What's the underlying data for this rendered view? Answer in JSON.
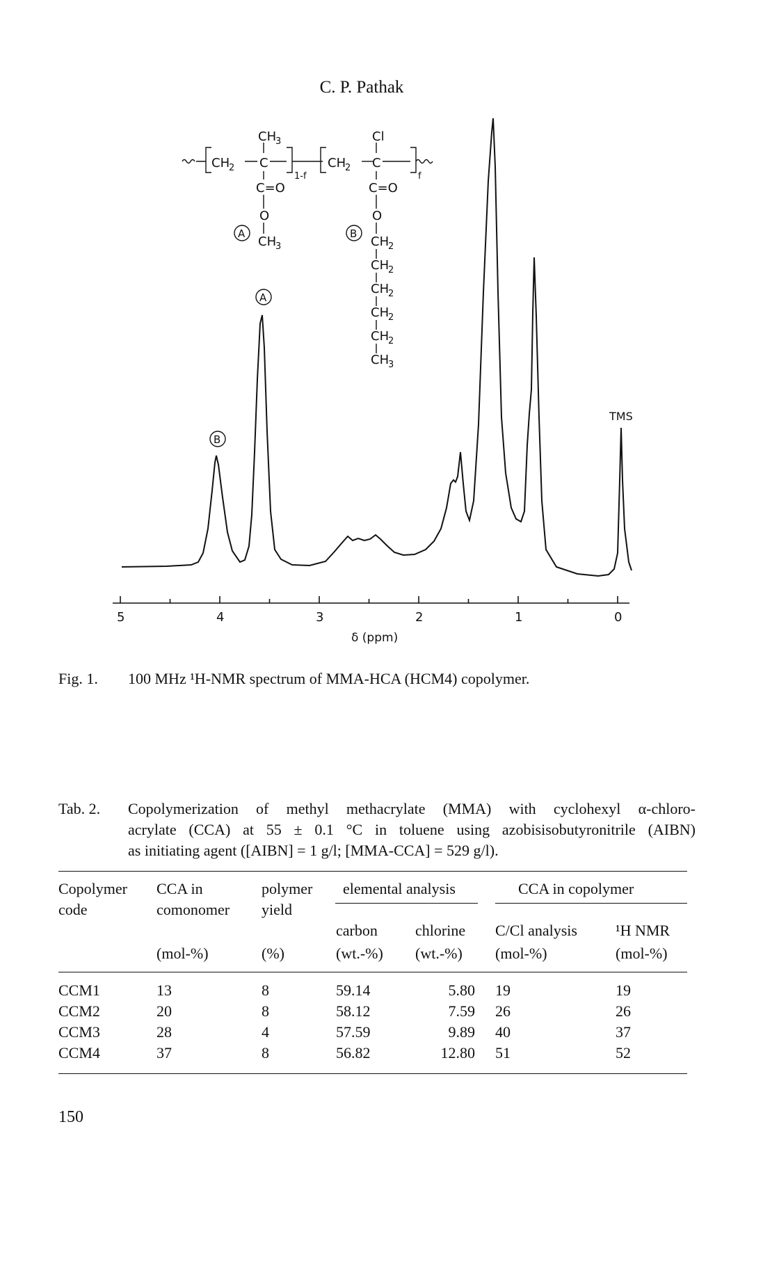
{
  "page": {
    "header": "C. P. Pathak",
    "page_number": "150"
  },
  "figure": {
    "caption_number": "Fig. 1.",
    "caption_text": "100 MHz ¹H-NMR spectrum of MMA-HCA (HCM4) copolymer.",
    "structure_labels": {
      "ch3": "CH",
      "cl": "Cl",
      "ch2": "CH",
      "co": "C=O",
      "c": "C",
      "o": "O",
      "sub_left": "1-f",
      "sub_right": "f",
      "marker_a": "A",
      "marker_b": "B"
    },
    "peak_labels": {
      "a": "A",
      "b": "B",
      "tms": "TMS"
    },
    "axis": {
      "label": "δ (ppm)",
      "ticks": [
        "5",
        "4",
        "3",
        "2",
        "1",
        "0"
      ]
    }
  },
  "table": {
    "caption_number": "Tab. 2.",
    "caption_lines": [
      "Copolymerization of methyl methacrylate (MMA) with cyclohexyl α-chloro-",
      "acrylate (CCA) at 55 ± 0.1 °C in toluene using azobisisobutyronitrile (AIBN)",
      "as initiating agent ([AIBN] = 1 g/l; [MMA-CCA] = 529 g/l)."
    ],
    "headers": {
      "copolymer": "Copolymer",
      "code": "code",
      "cca_in": "CCA in",
      "comonomer": "comonomer",
      "cca_unit": "(mol-%)",
      "polymer": "polymer",
      "yield": "yield",
      "yield_unit": "(%)",
      "elemental": "elemental analysis",
      "carbon": "carbon",
      "carbon_unit": "(wt.-%)",
      "chlorine": "chlorine",
      "chlorine_unit": "(wt.-%)",
      "cca_copolymer": "CCA in copolymer",
      "ccl": "C/Cl analysis",
      "ccl_unit": "(mol-%)",
      "nmr": "¹H NMR",
      "nmr_unit": "(mol-%)"
    },
    "rows": [
      [
        "CCM1",
        "13",
        "8",
        "59.14",
        "5.80",
        "19",
        "19"
      ],
      [
        "CCM2",
        "20",
        "8",
        "58.12",
        "7.59",
        "26",
        "26"
      ],
      [
        "CCM3",
        "28",
        "4",
        "57.59",
        "9.89",
        "40",
        "37"
      ],
      [
        "CCM4",
        "37",
        "8",
        "56.82",
        "12.80",
        "51",
        "52"
      ]
    ]
  }
}
